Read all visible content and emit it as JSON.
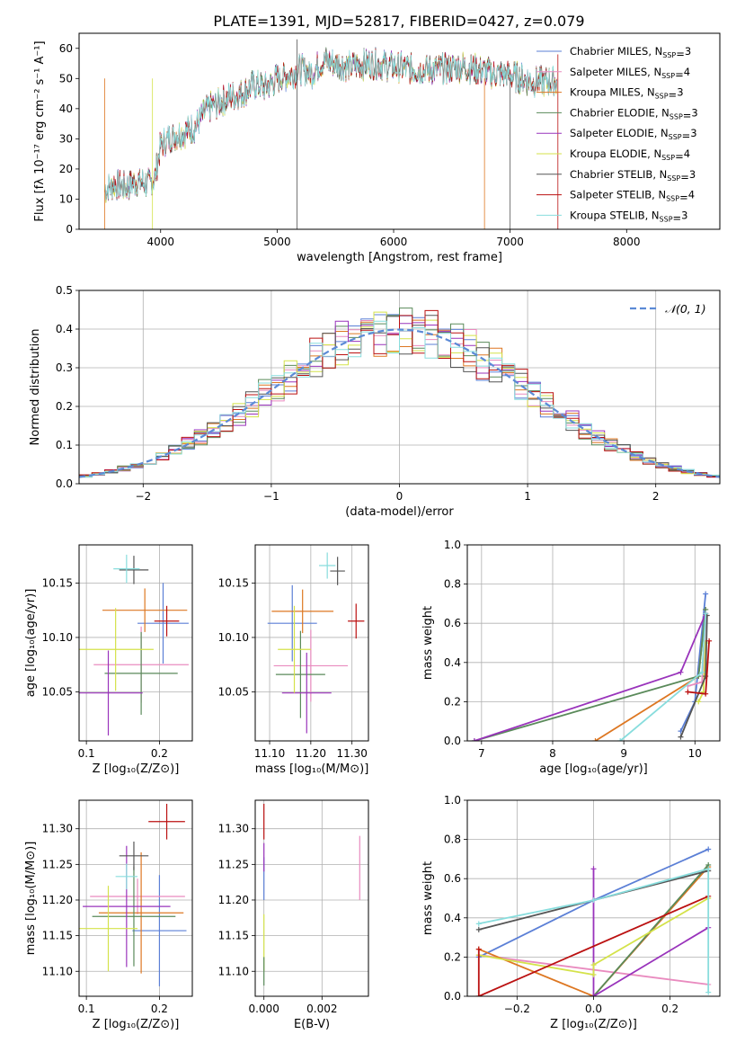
{
  "figure_title": "PLATE=1391, MJD=52817, FIBERID=0427, z=0.079",
  "colors": {
    "Chabrier MILES": "#5b7fd6",
    "Salpeter MILES": "#e98bbf",
    "Kroupa MILES": "#dd7722",
    "Chabrier ELODIE": "#5a8a5a",
    "Salpeter ELODIE": "#9933bb",
    "Kroupa ELODIE": "#d4e24a",
    "Chabrier STELIB": "#555555",
    "Salpeter STELIB": "#bb1111",
    "Kroupa STELIB": "#88dddd",
    "normal": "#5b8ad6"
  },
  "chart_data": [
    {
      "id": "spectrum",
      "type": "line",
      "title": "PLATE=1391, MJD=52817, FIBERID=0427, z=0.079",
      "xlabel": "wavelength [Angstrom, rest frame]",
      "ylabel": "Flux [fλ 10⁻¹⁷ erg cm⁻² s⁻¹ A⁻¹]",
      "xlim": [
        3300,
        8800
      ],
      "ylim": [
        0,
        65
      ],
      "xticks": [
        4000,
        5000,
        6000,
        7000,
        8000
      ],
      "yticks": [
        0,
        10,
        20,
        30,
        40,
        50,
        60
      ],
      "legend_position": "right",
      "continuum": {
        "x": [
          3520,
          3600,
          3700,
          3800,
          3900,
          3950,
          4000,
          4100,
          4200,
          4300,
          4400,
          4500,
          4600,
          4700,
          4800,
          4900,
          5000,
          5100,
          5200,
          5300,
          5400,
          5500,
          5600,
          5800,
          6000,
          6200,
          6400,
          6600,
          6800,
          7000,
          7200,
          7400
        ],
        "y": [
          13,
          15,
          14,
          16,
          15,
          17,
          28,
          31,
          32,
          34,
          40,
          42,
          44,
          45,
          48,
          47,
          50,
          51,
          53,
          52,
          56,
          55,
          54,
          55,
          54,
          53,
          53,
          54,
          52,
          51,
          49,
          49
        ]
      },
      "legend": [
        {
          "label": "Chabrier MILES",
          "nssp": "3"
        },
        {
          "label": "Salpeter MILES",
          "nssp": "4"
        },
        {
          "label": "Kroupa MILES",
          "nssp": "3"
        },
        {
          "label": "Chabrier ELODIE",
          "nssp": "3"
        },
        {
          "label": "Salpeter ELODIE",
          "nssp": "3"
        },
        {
          "label": "Kroupa ELODIE",
          "nssp": "4"
        },
        {
          "label": "Chabrier STELIB",
          "nssp": "3"
        },
        {
          "label": "Salpeter STELIB",
          "nssp": "4"
        },
        {
          "label": "Kroupa STELIB",
          "nssp": "3"
        }
      ]
    },
    {
      "id": "residuals",
      "type": "histogram",
      "xlabel": "(data-model)/error",
      "ylabel": "Normed distribution",
      "xlim": [
        -2.5,
        2.5
      ],
      "ylim": [
        0,
        0.5
      ],
      "xticks": [
        -2,
        -1,
        0,
        1,
        2
      ],
      "yticks": [
        0.0,
        0.1,
        0.2,
        0.3,
        0.4,
        0.5
      ],
      "grid": true,
      "legend": [
        {
          "label": "𝒩(0, 1)"
        }
      ],
      "legend_position": "top-right",
      "bin_width": 0.1
    },
    {
      "id": "age-vs-Z",
      "type": "errorbar",
      "xlabel": "Z [log₁₀(Z/Z⊙)]",
      "ylabel": "age  [log₁₀(age/yr)]",
      "xlim": [
        0.09,
        0.245
      ],
      "ylim": [
        10.005,
        10.185
      ],
      "xticks": [
        0.1,
        0.2
      ],
      "yticks": [
        10.05,
        10.1,
        10.15
      ],
      "grid": true,
      "points": [
        {
          "s": "Chabrier MILES",
          "x": 0.205,
          "y": 10.113,
          "xerr": 0.035,
          "yerr": 0.037
        },
        {
          "s": "Salpeter MILES",
          "x": 0.175,
          "y": 10.075,
          "xerr": 0.065,
          "yerr": 0.035
        },
        {
          "s": "Kroupa MILES",
          "x": 0.18,
          "y": 10.125,
          "xerr": 0.058,
          "yerr": 0.02
        },
        {
          "s": "Chabrier ELODIE",
          "x": 0.175,
          "y": 10.067,
          "xerr": 0.05,
          "yerr": 0.038
        },
        {
          "s": "Salpeter ELODIE",
          "x": 0.13,
          "y": 10.049,
          "xerr": 0.047,
          "yerr": 0.039
        },
        {
          "s": "Kroupa ELODIE",
          "x": 0.14,
          "y": 10.089,
          "xerr": 0.052,
          "yerr": 0.038
        },
        {
          "s": "Chabrier STELIB",
          "x": 0.165,
          "y": 10.162,
          "xerr": 0.02,
          "yerr": 0.013
        },
        {
          "s": "Salpeter STELIB",
          "x": 0.21,
          "y": 10.115,
          "xerr": 0.017,
          "yerr": 0.014
        },
        {
          "s": "Kroupa STELIB",
          "x": 0.155,
          "y": 10.163,
          "xerr": 0.018,
          "yerr": 0.013
        }
      ]
    },
    {
      "id": "age-vs-mass",
      "type": "errorbar",
      "xlabel": "mass [log₁₀(M/M⊙)]",
      "ylabel": "",
      "xlim": [
        11.065,
        11.34
      ],
      "ylim": [
        10.005,
        10.185
      ],
      "xticks": [
        11.1,
        11.2,
        11.3
      ],
      "yticks": [
        10.05,
        10.1,
        10.15
      ],
      "grid": true,
      "points": [
        {
          "s": "Chabrier MILES",
          "x": 11.155,
          "y": 10.113,
          "xerr": 0.06,
          "yerr": 0.035
        },
        {
          "s": "Salpeter MILES",
          "x": 11.2,
          "y": 10.074,
          "xerr": 0.09,
          "yerr": 0.033
        },
        {
          "s": "Kroupa MILES",
          "x": 11.18,
          "y": 10.124,
          "xerr": 0.075,
          "yerr": 0.02
        },
        {
          "s": "Chabrier ELODIE",
          "x": 11.175,
          "y": 10.066,
          "xerr": 0.06,
          "yerr": 0.04
        },
        {
          "s": "Salpeter ELODIE",
          "x": 11.19,
          "y": 10.049,
          "xerr": 0.06,
          "yerr": 0.037
        },
        {
          "s": "Kroupa ELODIE",
          "x": 11.16,
          "y": 10.089,
          "xerr": 0.04,
          "yerr": 0.04
        },
        {
          "s": "Chabrier STELIB",
          "x": 11.265,
          "y": 10.161,
          "xerr": 0.018,
          "yerr": 0.013
        },
        {
          "s": "Salpeter STELIB",
          "x": 11.31,
          "y": 10.115,
          "xerr": 0.02,
          "yerr": 0.016
        },
        {
          "s": "Kroupa STELIB",
          "x": 11.24,
          "y": 10.166,
          "xerr": 0.02,
          "yerr": 0.012
        }
      ]
    },
    {
      "id": "weight-vs-age",
      "type": "line",
      "xlabel": "age  [log₁₀(age/yr)]",
      "ylabel": "mass weight",
      "xlim": [
        6.8,
        10.35
      ],
      "ylim": [
        0,
        1
      ],
      "xticks": [
        7,
        8,
        9,
        10
      ],
      "yticks": [
        0.0,
        0.2,
        0.4,
        0.6,
        0.8,
        1.0
      ],
      "grid": true,
      "series": [
        {
          "s": "Chabrier MILES",
          "x": [
            9.8,
            10.0,
            10.15
          ],
          "y": [
            0.05,
            0.2,
            0.75
          ]
        },
        {
          "s": "Salpeter MILES",
          "x": [
            9.9,
            10.1,
            10.15
          ],
          "y": [
            0.28,
            0.3,
            0.64
          ]
        },
        {
          "s": "Kroupa MILES",
          "x": [
            8.6,
            10.05,
            10.15
          ],
          "y": [
            0.0,
            0.33,
            0.67
          ]
        },
        {
          "s": "Chabrier ELODIE",
          "x": [
            6.9,
            10.05,
            10.15
          ],
          "y": [
            0.0,
            0.33,
            0.67
          ]
        },
        {
          "s": "Salpeter ELODIE",
          "x": [
            6.9,
            9.8,
            10.15
          ],
          "y": [
            0.0,
            0.35,
            0.65
          ]
        },
        {
          "s": "Kroupa ELODIE",
          "x": [
            10.05,
            10.12,
            10.15
          ],
          "y": [
            0.2,
            0.25,
            0.5
          ]
        },
        {
          "s": "Chabrier STELIB",
          "x": [
            9.8,
            10.15,
            10.17
          ],
          "y": [
            0.02,
            0.33,
            0.64
          ]
        },
        {
          "s": "Salpeter STELIB",
          "x": [
            9.9,
            10.15,
            10.2
          ],
          "y": [
            0.25,
            0.24,
            0.51
          ]
        },
        {
          "s": "Kroupa STELIB",
          "x": [
            8.95,
            10.1,
            10.15
          ],
          "y": [
            0.0,
            0.35,
            0.65
          ]
        }
      ]
    },
    {
      "id": "mass-vs-Z",
      "type": "errorbar",
      "xlabel": "Z [log₁₀(Z/Z⊙)]",
      "ylabel": "mass [log₁₀(M/M⊙)]",
      "xlim": [
        0.09,
        0.245
      ],
      "ylim": [
        11.065,
        11.34
      ],
      "xticks": [
        0.1,
        0.2
      ],
      "yticks": [
        11.1,
        11.15,
        11.2,
        11.25,
        11.3
      ],
      "grid": true,
      "points": [
        {
          "s": "Chabrier MILES",
          "x": 0.2,
          "y": 11.157,
          "xerr": 0.037,
          "yerr": 0.078
        },
        {
          "s": "Salpeter MILES",
          "x": 0.17,
          "y": 11.205,
          "xerr": 0.065,
          "yerr": 0.025
        },
        {
          "s": "Kroupa MILES",
          "x": 0.175,
          "y": 11.182,
          "xerr": 0.058,
          "yerr": 0.085
        },
        {
          "s": "Chabrier ELODIE",
          "x": 0.165,
          "y": 11.177,
          "xerr": 0.057,
          "yerr": 0.07
        },
        {
          "s": "Salpeter ELODIE",
          "x": 0.155,
          "y": 11.191,
          "xerr": 0.06,
          "yerr": 0.085
        },
        {
          "s": "Kroupa ELODIE",
          "x": 0.13,
          "y": 11.16,
          "xerr": 0.04,
          "yerr": 0.06
        },
        {
          "s": "Chabrier STELIB",
          "x": 0.165,
          "y": 11.262,
          "xerr": 0.02,
          "yerr": 0.02
        },
        {
          "s": "Salpeter STELIB",
          "x": 0.21,
          "y": 11.31,
          "xerr": 0.025,
          "yerr": 0.025
        },
        {
          "s": "Kroupa STELIB",
          "x": 0.155,
          "y": 11.233,
          "xerr": 0.015,
          "yerr": 0.018
        }
      ]
    },
    {
      "id": "mass-vs-EBV",
      "type": "errorbar",
      "xlabel": "E(B-V)",
      "ylabel": "",
      "xlim": [
        -0.0003,
        0.0036
      ],
      "ylim": [
        11.065,
        11.34
      ],
      "xticks": [
        0.0,
        0.002
      ],
      "yticks": [
        11.1,
        11.15,
        11.2,
        11.25,
        11.3
      ],
      "grid": true,
      "points": [
        {
          "s": "Chabrier MILES",
          "x": 0.0,
          "y": 11.23,
          "xerr": 0,
          "yerr": 0.03
        },
        {
          "s": "Salpeter MILES",
          "x": 0.0033,
          "y": 11.245,
          "xerr": 0,
          "yerr": 0.045
        },
        {
          "s": "Kroupa ELODIE",
          "x": 0.0,
          "y": 11.14,
          "xerr": 0,
          "yerr": 0.04
        },
        {
          "s": "Salpeter ELODIE",
          "x": 0.0,
          "y": 11.26,
          "xerr": 0,
          "yerr": 0.02
        },
        {
          "s": "Salpeter STELIB",
          "x": 0.0,
          "y": 11.31,
          "xerr": 0,
          "yerr": 0.025
        },
        {
          "s": "Chabrier ELODIE",
          "x": 0.0,
          "y": 11.1,
          "xerr": 0,
          "yerr": 0.02
        }
      ]
    },
    {
      "id": "weight-vs-Z",
      "type": "line",
      "xlabel": "Z [log₁₀(Z/Z⊙)]",
      "ylabel": "mass weight",
      "xlim": [
        -0.33,
        0.33
      ],
      "ylim": [
        0,
        1
      ],
      "xticks": [
        -0.2,
        0.0,
        0.2
      ],
      "yticks": [
        0.0,
        0.2,
        0.4,
        0.6,
        0.8,
        1.0
      ],
      "grid": true,
      "series": [
        {
          "s": "Chabrier MILES",
          "x": [
            -0.3,
            0.0,
            0.3
          ],
          "y": [
            0.2,
            0.49,
            0.75
          ]
        },
        {
          "s": "Salpeter MILES",
          "x": [
            -0.3,
            0.3
          ],
          "y": [
            0.21,
            0.06
          ]
        },
        {
          "s": "Kroupa MILES",
          "x": [
            -0.3,
            0.0,
            0.3
          ],
          "y": [
            0.24,
            0.0,
            0.66
          ]
        },
        {
          "s": "Chabrier ELODIE",
          "x": [
            0.0,
            0.3
          ],
          "y": [
            0.0,
            0.67
          ]
        },
        {
          "s": "Salpeter ELODIE",
          "x": [
            0.0,
            0.0,
            0.3
          ],
          "y": [
            0.65,
            0.0,
            0.35
          ]
        },
        {
          "s": "Kroupa ELODIE",
          "x": [
            -0.3,
            0.0,
            0.0,
            0.3
          ],
          "y": [
            0.21,
            0.11,
            0.16,
            0.5
          ]
        },
        {
          "s": "Chabrier STELIB",
          "x": [
            -0.3,
            0.3
          ],
          "y": [
            0.34,
            0.64
          ]
        },
        {
          "s": "Salpeter STELIB",
          "x": [
            -0.3,
            -0.3,
            0.3
          ],
          "y": [
            0.24,
            0.0,
            0.51
          ]
        },
        {
          "s": "Kroupa STELIB",
          "x": [
            -0.3,
            0.0,
            0.3,
            0.3
          ],
          "y": [
            0.37,
            0.49,
            0.65,
            0.02
          ]
        }
      ]
    }
  ]
}
